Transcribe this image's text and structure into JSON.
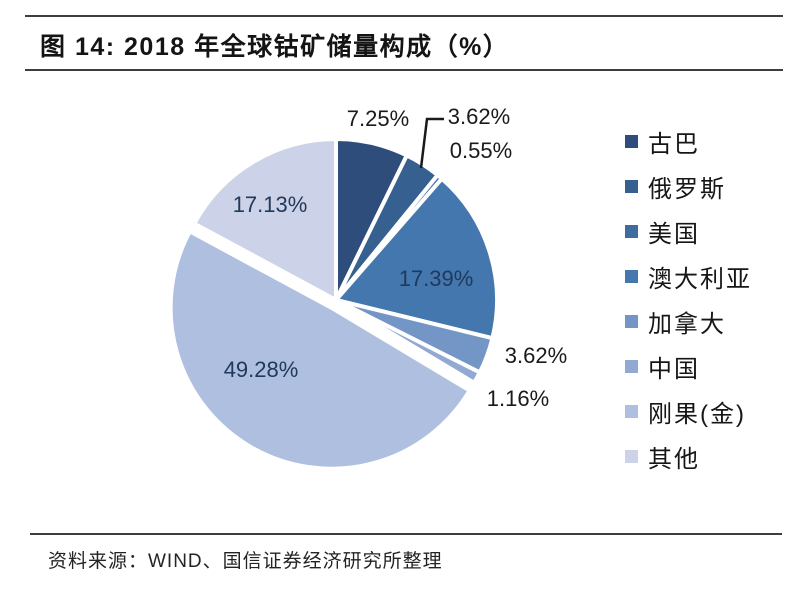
{
  "figure": {
    "title": "图 14:  2018 年全球钴矿储量构成（%）",
    "source": "资料来源：WIND、国信证券经济研究所整理"
  },
  "chart_data": {
    "type": "pie",
    "title": "2018 年全球钴矿储量构成（%）",
    "unit": "%",
    "start_angle_deg": 0,
    "direction": "clockwise",
    "legend_position": "right",
    "slices": [
      {
        "key": "cuba",
        "name": "古巴",
        "value": 7.25,
        "label": "7.25%",
        "color": "#2E4D7B"
      },
      {
        "key": "russia",
        "name": "俄罗斯",
        "value": 3.62,
        "label": "3.62%",
        "color": "#36608F"
      },
      {
        "key": "usa",
        "name": "美国",
        "value": 0.55,
        "label": "0.55%",
        "color": "#3E6CA1"
      },
      {
        "key": "australia",
        "name": "澳大利亚",
        "value": 17.39,
        "label": "17.39%",
        "color": "#4377AE"
      },
      {
        "key": "canada",
        "name": "加拿大",
        "value": 3.62,
        "label": "3.62%",
        "color": "#7396C6"
      },
      {
        "key": "china",
        "name": "中国",
        "value": 1.16,
        "label": "1.16%",
        "color": "#91A9D3"
      },
      {
        "key": "congo_drc",
        "name": "刚果(金)",
        "value": 49.28,
        "label": "49.28%",
        "color": "#AFBFDF"
      },
      {
        "key": "others",
        "name": "其他",
        "value": 17.13,
        "label": "17.13%",
        "color": "#CCD3E8"
      }
    ]
  }
}
